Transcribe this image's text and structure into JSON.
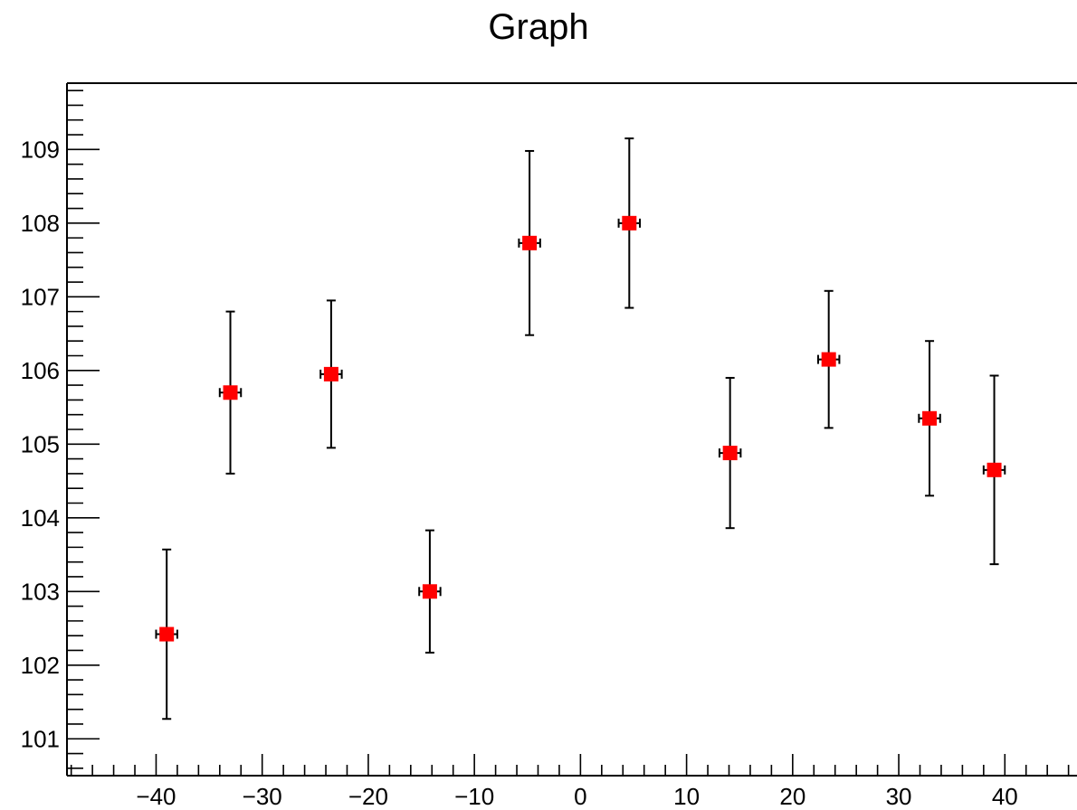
{
  "chart_data": {
    "type": "scatter",
    "title": "Graph",
    "xlabel": "",
    "ylabel": "",
    "xlim": [
      -48.4,
      46.8
    ],
    "ylim": [
      100.5,
      109.9
    ],
    "x_ticks": [
      -40,
      -30,
      -20,
      -10,
      0,
      10,
      20,
      30,
      40
    ],
    "y_ticks": [
      101,
      102,
      103,
      104,
      105,
      106,
      107,
      108,
      109
    ],
    "grid": false,
    "legend": "none",
    "marker_color": "#ff0000",
    "marker": "square",
    "series": [
      {
        "x": [
          -39.0,
          -33.0,
          -23.5,
          -14.2,
          -4.8,
          4.6,
          14.1,
          23.4,
          32.9,
          39.0
        ],
        "y": [
          102.42,
          105.7,
          105.95,
          103.0,
          107.73,
          108.0,
          104.88,
          106.15,
          105.35,
          104.65
        ],
        "ex": [
          1.0,
          1.0,
          1.0,
          1.0,
          1.0,
          1.0,
          1.0,
          1.0,
          1.0,
          1.0
        ],
        "ey": [
          1.15,
          1.1,
          1.0,
          0.83,
          1.25,
          1.15,
          1.02,
          0.93,
          1.05,
          1.28
        ]
      }
    ]
  }
}
